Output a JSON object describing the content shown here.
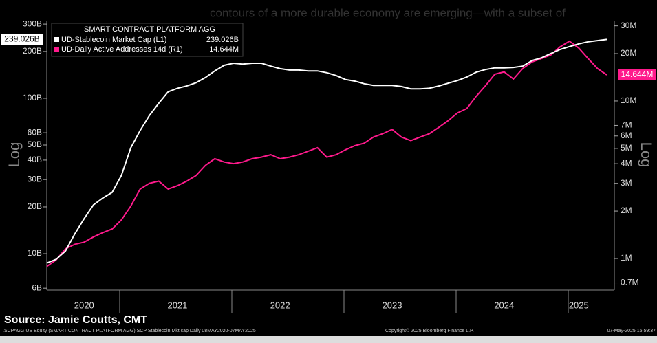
{
  "chart_data": {
    "type": "line",
    "background_text": "contours of a more durable economy are emerging—with a subset of",
    "legend_title": "SMART CONTRACT PLATFORM AGG",
    "log_scale": true,
    "y_axis_label": "Log",
    "y2_axis_label": "Log",
    "categories": [
      null,
      null,
      null,
      null,
      "2020",
      null,
      null,
      null,
      null,
      null,
      null,
      null,
      null,
      null,
      "2021",
      null,
      null,
      null,
      null,
      null,
      null,
      null,
      null,
      null,
      null,
      "2022",
      null,
      null,
      null,
      null,
      null,
      null,
      null,
      null,
      null,
      null,
      null,
      "2023",
      null,
      null,
      null,
      null,
      null,
      null,
      null,
      null,
      null,
      null,
      null,
      "2024",
      null,
      null,
      null,
      null,
      null,
      null,
      null,
      "2025",
      null,
      null,
      null
    ],
    "series": [
      {
        "name": "UD-Stablecoin Market Cap  (L1)",
        "color": "#ffffff",
        "axis": "y",
        "last_value_label": "239.026B",
        "values": [
          8.7,
          9.2,
          10.4,
          13.4,
          16.8,
          20.6,
          22.8,
          24.8,
          31.9,
          48,
          62,
          77.5,
          93,
          110,
          116,
          120,
          126,
          136,
          150,
          163,
          168,
          166,
          168,
          168,
          161,
          155,
          152,
          152,
          150,
          150,
          146,
          140,
          132,
          129,
          124,
          121,
          121,
          121,
          119,
          115,
          115,
          116,
          120,
          125,
          130,
          137,
          147,
          153,
          157,
          157,
          158,
          161,
          175,
          182,
          194,
          206,
          215,
          224,
          231,
          235,
          239.026
        ]
      },
      {
        "name": "UD-Daily Active Addresses 14d  (R1)",
        "color": "#ff1a8c",
        "axis": "y2",
        "last_value_label": "14.644M",
        "values": [
          0.89,
          0.98,
          1.15,
          1.23,
          1.27,
          1.37,
          1.46,
          1.54,
          1.76,
          2.15,
          2.76,
          3.0,
          3.1,
          2.76,
          2.9,
          3.1,
          3.37,
          3.9,
          4.3,
          4.1,
          4.0,
          4.1,
          4.3,
          4.4,
          4.56,
          4.3,
          4.4,
          4.56,
          4.8,
          5.05,
          4.4,
          4.56,
          4.9,
          5.2,
          5.4,
          5.9,
          6.2,
          6.6,
          5.9,
          5.6,
          5.9,
          6.2,
          6.8,
          7.5,
          8.4,
          8.95,
          10.7,
          12.5,
          14.8,
          15.3,
          13.8,
          16.1,
          17.7,
          18.6,
          19.6,
          22.1,
          24.0,
          21.7,
          18.6,
          16.1,
          14.644
        ]
      }
    ],
    "ylim": [
      5.83,
      316
    ],
    "yticks": [
      {
        "value": 300,
        "label": "300B"
      },
      {
        "value": 200,
        "label": "200B"
      },
      {
        "value": 100,
        "label": "100B"
      },
      {
        "value": 60,
        "label": "60B"
      },
      {
        "value": 50,
        "label": "50B"
      },
      {
        "value": 40,
        "label": "40B"
      },
      {
        "value": 30,
        "label": "30B"
      },
      {
        "value": 20,
        "label": "20B"
      },
      {
        "value": 10,
        "label": "10B"
      },
      {
        "value": 6,
        "label": "6B"
      }
    ],
    "y2lim": [
      0.63,
      32.4
    ],
    "y2ticks": [
      {
        "value": 30,
        "label": "30M"
      },
      {
        "value": 20,
        "label": "20M"
      },
      {
        "value": 10,
        "label": "10M"
      },
      {
        "value": 7,
        "label": "7M"
      },
      {
        "value": 6,
        "label": "6M"
      },
      {
        "value": 5,
        "label": "5M"
      },
      {
        "value": 4,
        "label": "4M"
      },
      {
        "value": 3,
        "label": "3M"
      },
      {
        "value": 2,
        "label": "2M"
      },
      {
        "value": 1,
        "label": "1M"
      },
      {
        "value": 0.7,
        "label": "0.7M"
      }
    ],
    "source": "Source: Jamie Coutts, CMT",
    "footer_left": ".SCPAGG US Equity (SMART CONTRACT PLATFORM AGG) SCP Stablecoin Mkt cap  Daily 08MAY2020-07MAY2025",
    "footer_center": "Copyright© 2025 Bloomberg Finance L.P.",
    "footer_right": "07-May-2025 15:59:37"
  }
}
